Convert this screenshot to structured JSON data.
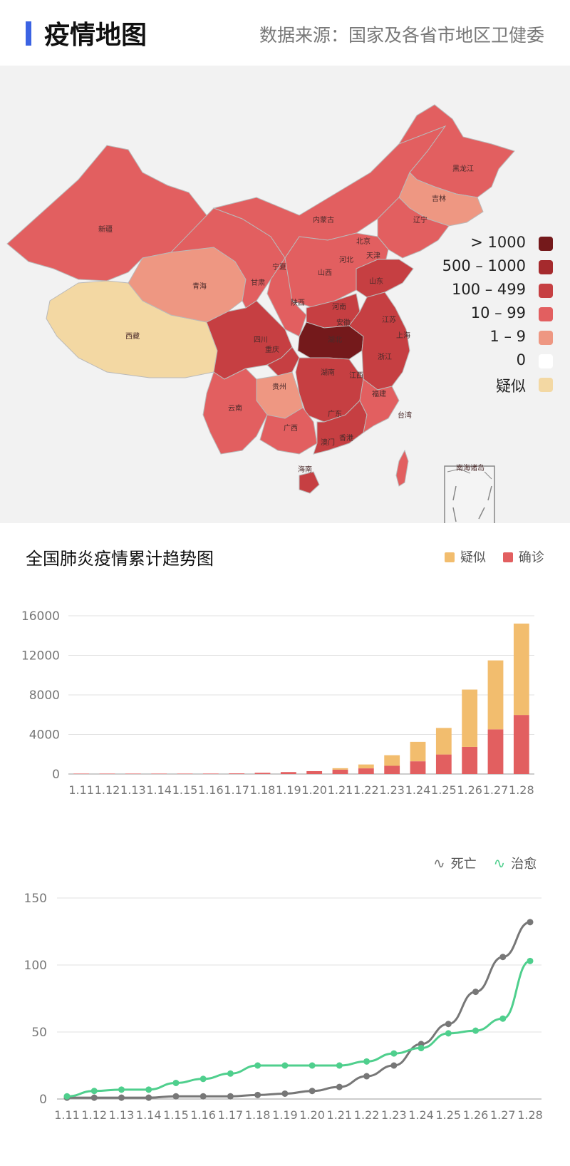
{
  "header": {
    "title": "疫情地图",
    "source": "数据来源：国家及各省市地区卫健委"
  },
  "map": {
    "legend": [
      {
        "label": "> 1000",
        "color": "#74191b"
      },
      {
        "label": "500 – 1000",
        "color": "#a52a2d"
      },
      {
        "label": "100 – 499",
        "color": "#c63f42"
      },
      {
        "label": "10 – 99",
        "color": "#e25f60"
      },
      {
        "label": "1 – 9",
        "color": "#ee9782"
      },
      {
        "label": "0",
        "color": "#ffffff"
      },
      {
        "label": "疑似",
        "color": "#f3d8a3"
      }
    ],
    "province_labels": [
      "新疆",
      "西藏",
      "青海",
      "甘肃",
      "宁夏",
      "内蒙古",
      "黑龙江",
      "吉林",
      "辽宁",
      "北京",
      "天津",
      "河北",
      "山西",
      "山东",
      "陕西",
      "河南",
      "四川",
      "重庆",
      "湖北",
      "安徽",
      "江苏",
      "上海",
      "浙江",
      "湖南",
      "江西",
      "贵州",
      "云南",
      "广西",
      "广东",
      "福建",
      "台湾",
      "香港",
      "澳门",
      "海南",
      "南海诸岛"
    ]
  },
  "chart_data": [
    {
      "type": "bar",
      "title": "全国肺炎疫情累计趋势图",
      "categories": [
        "1.11",
        "1.12",
        "1.13",
        "1.14",
        "1.15",
        "1.16",
        "1.17",
        "1.18",
        "1.19",
        "1.20",
        "1.21",
        "1.22",
        "1.23",
        "1.24",
        "1.25",
        "1.26",
        "1.27",
        "1.28"
      ],
      "stacked": true,
      "series": [
        {
          "name": "确诊",
          "color": "#e25f60",
          "values": [
            41,
            41,
            41,
            41,
            41,
            45,
            62,
            121,
            198,
            291,
            440,
            571,
            830,
            1287,
            1975,
            2744,
            4515,
            5974
          ]
        },
        {
          "name": "疑似",
          "color": "#f2bd6e",
          "values": [
            0,
            0,
            0,
            0,
            0,
            0,
            0,
            0,
            0,
            0,
            149,
            393,
            1072,
            1965,
            2684,
            5794,
            6973,
            9239
          ]
        }
      ],
      "yticks": [
        0,
        4000,
        8000,
        12000,
        16000
      ],
      "ylim": [
        0,
        16000
      ],
      "legend_position": "top-right",
      "grid": true
    },
    {
      "type": "line",
      "categories": [
        "1.11",
        "1.12",
        "1.13",
        "1.14",
        "1.15",
        "1.16",
        "1.17",
        "1.18",
        "1.19",
        "1.20",
        "1.21",
        "1.22",
        "1.23",
        "1.24",
        "1.25",
        "1.26",
        "1.27",
        "1.28"
      ],
      "series": [
        {
          "name": "死亡",
          "color": "#777777",
          "values": [
            1,
            1,
            1,
            1,
            2,
            2,
            2,
            3,
            4,
            6,
            9,
            17,
            25,
            41,
            56,
            80,
            106,
            132
          ]
        },
        {
          "name": "治愈",
          "color": "#4fcf8d",
          "values": [
            2,
            6,
            7,
            7,
            12,
            15,
            19,
            25,
            25,
            25,
            25,
            28,
            34,
            38,
            49,
            51,
            60,
            103
          ]
        }
      ],
      "yticks": [
        0,
        50,
        100,
        150
      ],
      "ylim": [
        0,
        150
      ],
      "legend_position": "top-right",
      "grid": true
    }
  ]
}
